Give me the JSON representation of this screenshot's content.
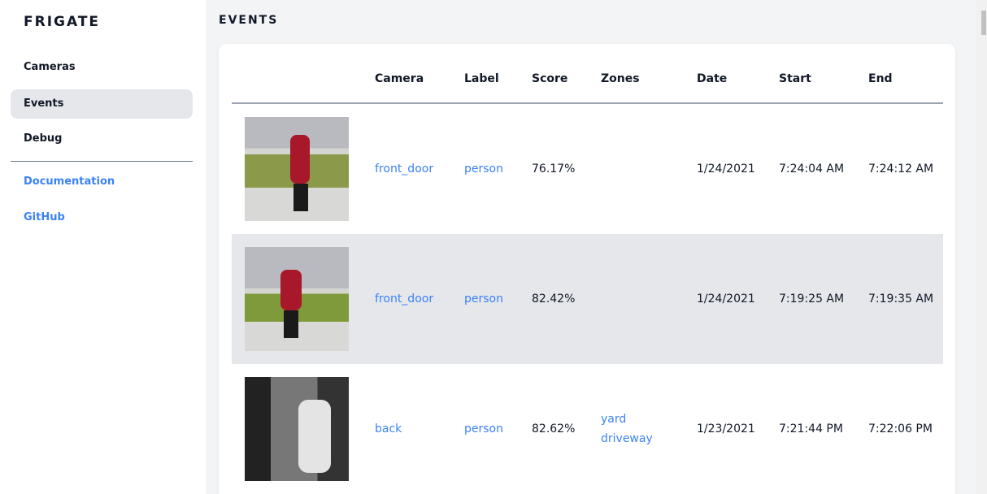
{
  "sidebar": {
    "brand": "FRIGATE",
    "items": [
      {
        "label": "Cameras",
        "active": false
      },
      {
        "label": "Events",
        "active": true
      },
      {
        "label": "Debug",
        "active": false
      }
    ],
    "links": [
      {
        "label": "Documentation"
      },
      {
        "label": "GitHub"
      }
    ]
  },
  "page": {
    "title": "EVENTS"
  },
  "table": {
    "headers": [
      "Camera",
      "Label",
      "Score",
      "Zones",
      "Date",
      "Start",
      "End"
    ],
    "rows": [
      {
        "camera": "front_door",
        "label": "person",
        "score": "76.17%",
        "zones": [
          "",
          ""
        ],
        "date": "1/24/2021",
        "start": "7:24:04 AM",
        "end": "7:24:12 AM"
      },
      {
        "camera": "front_door",
        "label": "person",
        "score": "82.42%",
        "zones": [
          "",
          ""
        ],
        "date": "1/24/2021",
        "start": "7:19:25 AM",
        "end": "7:19:35 AM"
      },
      {
        "camera": "back",
        "label": "person",
        "score": "82.62%",
        "zones": [
          "yard",
          "driveway"
        ],
        "date": "1/23/2021",
        "start": "7:21:44 PM",
        "end": "7:22:06 PM"
      }
    ]
  },
  "colors": {
    "accent": "#3b82f6",
    "active_bg": "#e5e7eb"
  }
}
